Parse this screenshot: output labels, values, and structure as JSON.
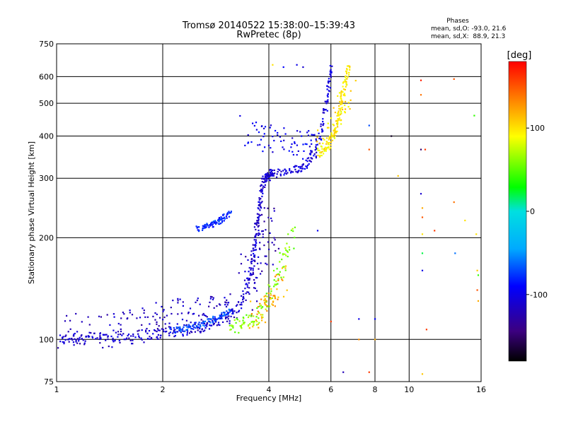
{
  "chart_data": {
    "type": "scatter",
    "title": "Tromsø 20140522 15:38:00–15:39:43",
    "subtitle": "RwPretec (8p)",
    "phase_box": {
      "heading": "Phases",
      "line_o": "mean, sd,O: -93.0, 21.6",
      "line_x": "mean, sd,X:  88.9, 21.3"
    },
    "xlabel": "Frequency [MHz]",
    "ylabel": "Stationary phase Virtual Height [km]",
    "x_scale": "log",
    "y_scale": "log",
    "xlim": [
      1,
      16
    ],
    "ylim": [
      75,
      750
    ],
    "x_ticks": [
      1,
      2,
      4,
      6,
      8,
      10,
      16
    ],
    "x_tick_labels": [
      "1",
      "2",
      "4",
      "6",
      "8",
      "10",
      "16"
    ],
    "y_ticks": [
      75,
      100,
      200,
      300,
      400,
      500,
      600,
      750
    ],
    "y_tick_labels": [
      "75",
      "100",
      "200",
      "300",
      "400",
      "500",
      "600",
      "750"
    ],
    "grid": true,
    "colorbar": {
      "label": "[deg]",
      "range": [
        -180,
        180
      ],
      "tick_values": [
        -100,
        0,
        100
      ],
      "tick_labels": [
        "-100",
        "0",
        "100"
      ]
    },
    "traces": [
      {
        "mode": "O",
        "phase": -110,
        "spread_f": 0.012,
        "spread_h": 0.035,
        "x": [
          1.02,
          1.1,
          1.2,
          1.35,
          1.5,
          1.7,
          1.9,
          2.1,
          2.3,
          2.5,
          2.7,
          2.9,
          3.1,
          3.3,
          3.45,
          3.55,
          3.62,
          3.68,
          3.72,
          3.76,
          3.8,
          3.85,
          3.9,
          4.0,
          4.1
        ],
        "y": [
          100,
          101,
          101,
          102,
          102,
          103,
          104,
          105,
          106,
          108,
          110,
          113,
          118,
          126,
          140,
          160,
          180,
          200,
          220,
          240,
          265,
          290,
          300,
          305,
          310
        ]
      },
      {
        "mode": "O",
        "phase": -105,
        "spread_f": 0.012,
        "spread_h": 0.03,
        "x": [
          3.9,
          4.2,
          4.5,
          4.8,
          5.0,
          5.2,
          5.4,
          5.6,
          5.75,
          5.85,
          5.95,
          6.0
        ],
        "y": [
          310,
          310,
          312,
          318,
          325,
          340,
          360,
          400,
          460,
          520,
          580,
          640
        ]
      },
      {
        "mode": "O",
        "phase": -115,
        "spread_f": 0.04,
        "spread_h": 0.12,
        "x": [
          1.05,
          1.15,
          1.3,
          1.45,
          1.6,
          1.75,
          1.9,
          2.05,
          2.2,
          2.4,
          2.6,
          2.8,
          3.0,
          3.2
        ],
        "y": [
          106,
          107,
          106,
          107,
          109,
          110,
          112,
          116,
          118,
          120,
          118,
          121,
          124,
          128
        ]
      },
      {
        "mode": "O",
        "phase": -120,
        "spread_f": 0.06,
        "spread_h": 0.2,
        "x": [
          3.45,
          3.55,
          3.65,
          3.75,
          3.85,
          3.95,
          4.05
        ],
        "y": [
          140,
          150,
          165,
          180,
          195,
          210,
          220
        ]
      },
      {
        "mode": "O",
        "phase": -100,
        "spread_f": 0.05,
        "spread_h": 0.1,
        "x": [
          3.4,
          3.8,
          4.2,
          4.6,
          5.0,
          5.4
        ],
        "y": [
          420,
          395,
          385,
          380,
          378,
          370
        ]
      },
      {
        "mode": "O",
        "phase": -80,
        "spread_f": 0.015,
        "spread_h": 0.02,
        "x": [
          2.5,
          2.6,
          2.7,
          2.8,
          2.9,
          3.0,
          3.1
        ],
        "y": [
          212,
          214,
          217,
          220,
          225,
          230,
          236
        ]
      },
      {
        "mode": "O",
        "phase": -70,
        "spread_f": 0.015,
        "spread_h": 0.02,
        "x": [
          2.1,
          2.25,
          2.4,
          2.55,
          2.7,
          2.85,
          3.0,
          3.15
        ],
        "y": [
          106,
          107,
          109,
          111,
          113,
          116,
          119,
          121
        ]
      },
      {
        "mode": "X",
        "phase": 95,
        "spread_f": 0.012,
        "spread_h": 0.03,
        "x": [
          5.5,
          5.7,
          5.9,
          6.1,
          6.25,
          6.35,
          6.45,
          6.55,
          6.65,
          6.75
        ],
        "y": [
          355,
          365,
          380,
          400,
          430,
          470,
          510,
          560,
          610,
          650
        ]
      },
      {
        "mode": "X",
        "phase": 100,
        "spread_f": 0.04,
        "spread_h": 0.08,
        "x": [
          5.6,
          5.9,
          6.2,
          6.5,
          6.8
        ],
        "y": [
          380,
          400,
          440,
          500,
          560
        ]
      },
      {
        "mode": "X",
        "phase": 60,
        "spread_f": 0.03,
        "spread_h": 0.05,
        "x": [
          3.1,
          3.3,
          3.5,
          3.7,
          3.9,
          4.1,
          4.3,
          4.5,
          4.7
        ],
        "y": [
          108,
          110,
          113,
          118,
          127,
          140,
          160,
          185,
          210
        ]
      },
      {
        "mode": "X",
        "phase": 120,
        "spread_f": 0.03,
        "spread_h": 0.1,
        "x": [
          3.6,
          3.8,
          4.0,
          4.2,
          4.4
        ],
        "y": [
          118,
          122,
          130,
          140,
          155
        ]
      }
    ],
    "isolated_points": [
      {
        "x": 4.1,
        "y": 650,
        "phase": 100
      },
      {
        "x": 4.4,
        "y": 640,
        "phase": -90
      },
      {
        "x": 4.8,
        "y": 650,
        "phase": -100
      },
      {
        "x": 5.0,
        "y": 640,
        "phase": -110
      },
      {
        "x": 5.5,
        "y": 210,
        "phase": -95
      },
      {
        "x": 6.0,
        "y": 113,
        "phase": 160
      },
      {
        "x": 6.5,
        "y": 80,
        "phase": -120
      },
      {
        "x": 7.2,
        "y": 115,
        "phase": -100
      },
      {
        "x": 7.2,
        "y": 100,
        "phase": 130
      },
      {
        "x": 7.7,
        "y": 430,
        "phase": -70
      },
      {
        "x": 7.7,
        "y": 365,
        "phase": 150
      },
      {
        "x": 7.7,
        "y": 80,
        "phase": 160
      },
      {
        "x": 8.0,
        "y": 115,
        "phase": -90
      },
      {
        "x": 8.0,
        "y": 100,
        "phase": 120
      },
      {
        "x": 8.9,
        "y": 400,
        "phase": -170
      },
      {
        "x": 9.3,
        "y": 305,
        "phase": 110
      },
      {
        "x": 10.8,
        "y": 585,
        "phase": 170
      },
      {
        "x": 10.8,
        "y": 530,
        "phase": 140
      },
      {
        "x": 10.8,
        "y": 365,
        "phase": -150
      },
      {
        "x": 10.8,
        "y": 270,
        "phase": -110
      },
      {
        "x": 10.9,
        "y": 245,
        "phase": 120
      },
      {
        "x": 10.9,
        "y": 230,
        "phase": 150
      },
      {
        "x": 10.9,
        "y": 205,
        "phase": 100
      },
      {
        "x": 10.9,
        "y": 180,
        "phase": 20
      },
      {
        "x": 10.9,
        "y": 160,
        "phase": -100
      },
      {
        "x": 10.9,
        "y": 79,
        "phase": 110
      },
      {
        "x": 11.1,
        "y": 365,
        "phase": 160
      },
      {
        "x": 11.2,
        "y": 107,
        "phase": 160
      },
      {
        "x": 11.8,
        "y": 210,
        "phase": 160
      },
      {
        "x": 13.4,
        "y": 590,
        "phase": 150
      },
      {
        "x": 13.4,
        "y": 255,
        "phase": 140
      },
      {
        "x": 13.5,
        "y": 180,
        "phase": -60
      },
      {
        "x": 14.4,
        "y": 225,
        "phase": 100
      },
      {
        "x": 15.3,
        "y": 460,
        "phase": 40
      },
      {
        "x": 15.5,
        "y": 205,
        "phase": 100
      },
      {
        "x": 15.6,
        "y": 160,
        "phase": 110
      },
      {
        "x": 15.6,
        "y": 140,
        "phase": 150
      },
      {
        "x": 15.7,
        "y": 130,
        "phase": 120
      },
      {
        "x": 15.7,
        "y": 155,
        "phase": 40
      }
    ]
  }
}
